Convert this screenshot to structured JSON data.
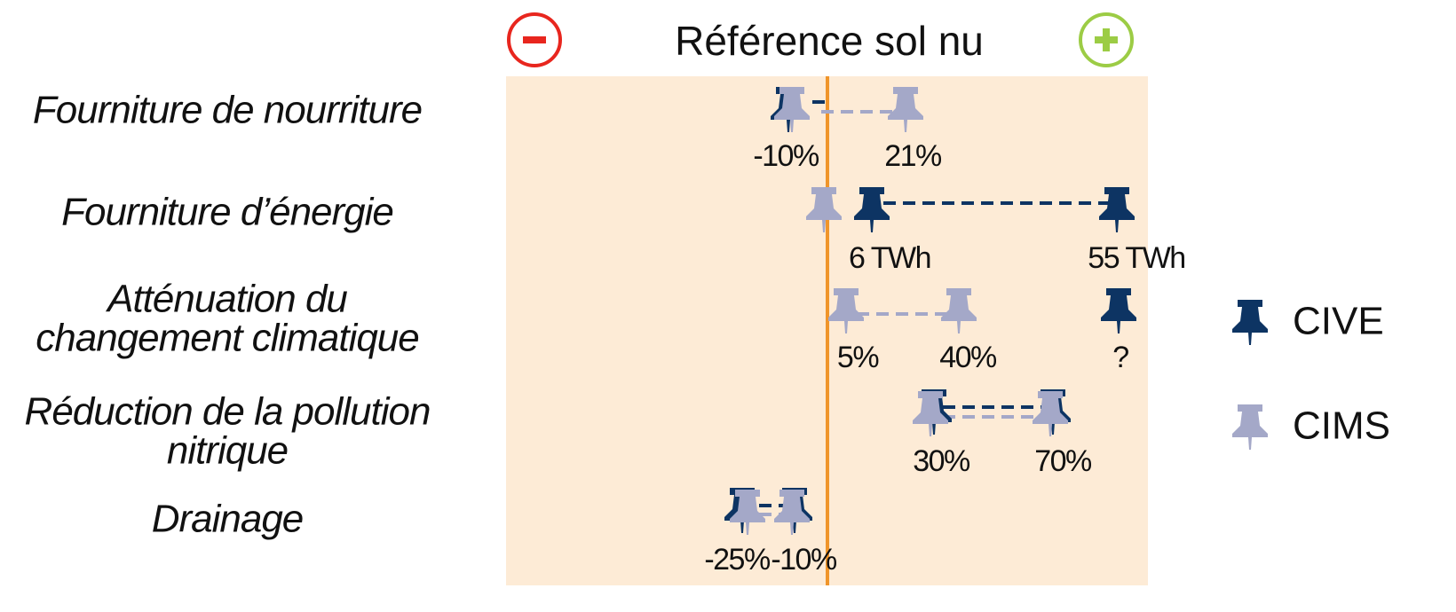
{
  "header": {
    "title": "Référence sol nu"
  },
  "rows": [
    {
      "label": [
        "Fourniture de nourriture"
      ],
      "values": [
        "-10%",
        "21%"
      ]
    },
    {
      "label": [
        "Fourniture d’énergie"
      ],
      "values": [
        "6 TWh",
        "55 TWh"
      ]
    },
    {
      "label": [
        "Atténuation du",
        "changement climatique"
      ],
      "values": [
        "5%",
        "40%",
        "?"
      ]
    },
    {
      "label": [
        "Réduction de la pollution",
        "nitrique"
      ],
      "values": [
        "30%",
        "70%"
      ]
    },
    {
      "label": [
        "Drainage"
      ],
      "values": [
        "-25%",
        "-10%"
      ]
    }
  ],
  "legend": [
    {
      "name": "CIVE",
      "color": "#0d3463"
    },
    {
      "name": "CIMS",
      "color": "#a4a8c8"
    }
  ]
}
